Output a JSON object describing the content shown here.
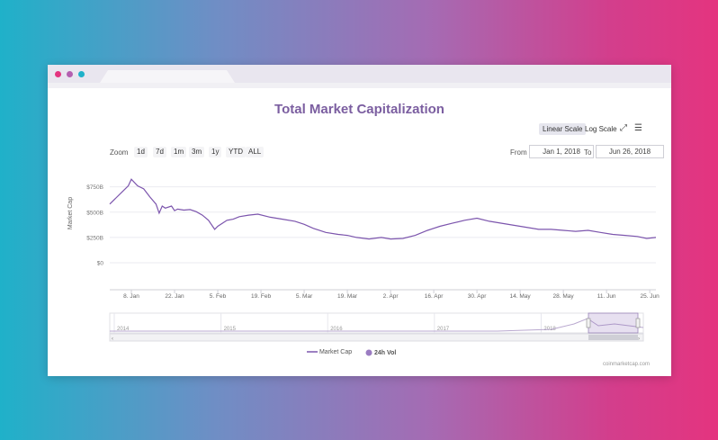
{
  "browser": {
    "dots": [
      "#e4347f",
      "#b45fb0",
      "#1fb1c9"
    ]
  },
  "chart_header": {
    "title": "Total Market Capitalization",
    "linear_scale": "Linear Scale",
    "log_scale": "Log Scale",
    "fullscreen_icon": "expand-icon",
    "menu_icon": "menu-icon"
  },
  "zoom": {
    "label": "Zoom",
    "buttons": [
      "1d",
      "7d",
      "1m",
      "3m",
      "1y",
      "YTD",
      "ALL"
    ]
  },
  "range": {
    "from_label": "From",
    "from_value": "Jan 1, 2018",
    "to_label": "To",
    "to_value": "Jun 26, 2018"
  },
  "legend": {
    "market_cap": "Market Cap",
    "volume": "24h Vol"
  },
  "credit": "coinmarketcap.com",
  "colors": {
    "line": "#7c55ad",
    "accent": "#7b5ea0",
    "grid": "#ebebf0"
  },
  "chart_data": {
    "type": "line",
    "ylabel": "Market Cap",
    "yticks": [
      "$750B",
      "$500B",
      "$250B",
      "$0"
    ],
    "ytick_values": [
      750,
      500,
      250,
      0
    ],
    "ylim": [
      0,
      800
    ],
    "xticks": [
      "8. Jan",
      "22. Jan",
      "5. Feb",
      "19. Feb",
      "5. Mar",
      "19. Mar",
      "2. Apr",
      "16. Apr",
      "30. Apr",
      "14. May",
      "28. May",
      "11. Jun",
      "25. Jun"
    ],
    "x_day_labels": [
      7,
      21,
      35,
      49,
      63,
      77,
      91,
      105,
      119,
      133,
      147,
      161,
      175
    ],
    "xlim_days": [
      0,
      177
    ],
    "series": [
      {
        "name": "Market Cap",
        "x": [
          0,
          2,
          4,
          6,
          7,
          9,
          11,
          13,
          15,
          16,
          17,
          18,
          20,
          21,
          22,
          24,
          26,
          28,
          30,
          32,
          34,
          35,
          37,
          38,
          40,
          42,
          45,
          48,
          52,
          56,
          60,
          63,
          66,
          70,
          74,
          77,
          80,
          84,
          88,
          91,
          95,
          99,
          103,
          107,
          111,
          115,
          119,
          123,
          127,
          131,
          135,
          139,
          143,
          147,
          151,
          155,
          159,
          163,
          167,
          171,
          174,
          177
        ],
        "values": [
          580,
          640,
          700,
          760,
          825,
          760,
          730,
          650,
          580,
          490,
          560,
          540,
          560,
          515,
          530,
          520,
          525,
          505,
          470,
          420,
          330,
          360,
          400,
          420,
          430,
          455,
          470,
          480,
          450,
          430,
          410,
          380,
          340,
          300,
          280,
          270,
          250,
          235,
          250,
          235,
          240,
          270,
          320,
          360,
          390,
          420,
          440,
          410,
          390,
          370,
          350,
          330,
          330,
          320,
          310,
          320,
          300,
          280,
          270,
          260,
          240,
          250
        ]
      }
    ],
    "navigator": {
      "labels": [
        "2014",
        "2015",
        "2016",
        "2017",
        "2018"
      ],
      "selected_range": "2018"
    },
    "legend_placement": "bottom-center",
    "grid": true
  }
}
